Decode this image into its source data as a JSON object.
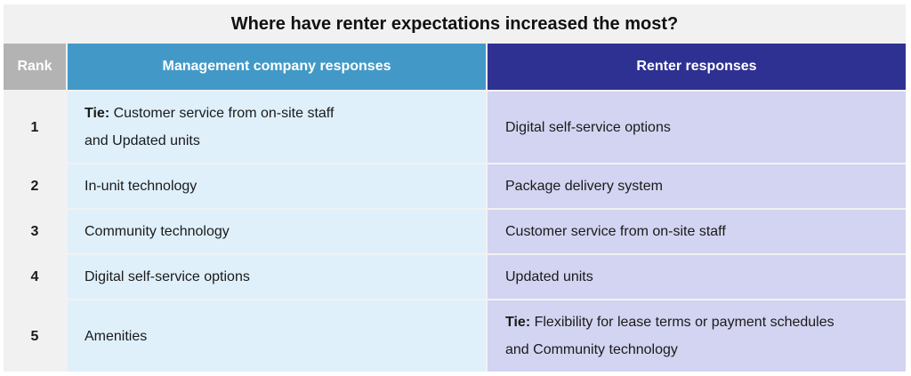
{
  "title": "Where have renter expectations increased the most?",
  "headers": {
    "rank": "Rank",
    "management": "Management company responses",
    "renter": "Renter responses"
  },
  "rows": [
    {
      "rank": "1",
      "management": {
        "prefix": "Tie:",
        "text": " Customer service from on-site staff",
        "line2": "and Updated units"
      },
      "renter": {
        "prefix": "",
        "text": "Digital self-service options",
        "line2": ""
      }
    },
    {
      "rank": "2",
      "management": {
        "prefix": "",
        "text": "In-unit technology",
        "line2": ""
      },
      "renter": {
        "prefix": "",
        "text": "Package delivery system",
        "line2": ""
      }
    },
    {
      "rank": "3",
      "management": {
        "prefix": "",
        "text": "Community technology",
        "line2": ""
      },
      "renter": {
        "prefix": "",
        "text": "Customer service from on-site staff",
        "line2": ""
      }
    },
    {
      "rank": "4",
      "management": {
        "prefix": "",
        "text": "Digital self-service options",
        "line2": ""
      },
      "renter": {
        "prefix": "",
        "text": "Updated units",
        "line2": ""
      }
    },
    {
      "rank": "5",
      "management": {
        "prefix": "",
        "text": "Amenities",
        "line2": ""
      },
      "renter": {
        "prefix": "Tie:",
        "text": " Flexibility for lease terms or payment schedules",
        "line2": "and Community technology"
      }
    }
  ],
  "colors": {
    "rank_header": "#b3b3b3",
    "management_header": "#4299c8",
    "renter_header": "#2e3192",
    "management_cell": "#dff0fb",
    "renter_cell": "#d3d4f1"
  }
}
